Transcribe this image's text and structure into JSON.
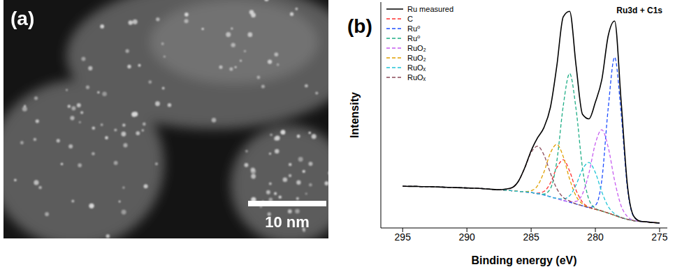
{
  "image": {
    "label": "(a)",
    "scale_bar": "10 nm"
  },
  "chart_data": {
    "type": "line",
    "title": "(b)",
    "annotations": [
      "Ru3d + C1s"
    ],
    "x_label": "Binding energy (eV)",
    "y_label": "Intensity",
    "x": [
      295,
      294.5,
      294,
      293.5,
      293,
      292.5,
      292,
      291.5,
      291,
      290.5,
      290,
      289.5,
      289,
      288.5,
      288,
      287.5,
      287,
      286.5,
      286,
      285.5,
      285,
      284.5,
      284,
      283.5,
      283,
      282.5,
      282,
      281.5,
      281,
      280.5,
      280,
      279.5,
      279,
      278.5,
      278,
      277.5,
      277,
      276.5,
      276,
      275.5,
      275
    ],
    "xlim": [
      296.7,
      274.4
    ],
    "xticks": [
      295,
      290,
      285,
      280,
      275
    ],
    "ylim": [
      0,
      100
    ],
    "tick_labels": "x",
    "legend": "upper left",
    "series": [
      {
        "name": "Ru measured",
        "color": "#000000",
        "line_style": "solid",
        "values": [
          18.5,
          18.4,
          18.4,
          18.3,
          18.3,
          18.2,
          18.1,
          18.0,
          17.9,
          17.8,
          17.7,
          17.6,
          17.5,
          17.3,
          17.1,
          16.9,
          17.2,
          17.8,
          20.6,
          26.6,
          34.2,
          39.9,
          44.5,
          53.4,
          71.8,
          93.5,
          95.9,
          71.8,
          50.3,
          48.3,
          55.7,
          65.6,
          85.1,
          91.6,
          56.5,
          18.6,
          5.1,
          3.0,
          2.7,
          2.4,
          2.2
        ]
      },
      {
        "name": "C",
        "color": "#ff3030",
        "line_style": "dashed",
        "values": [
          18.5,
          18.4,
          18.4,
          18.3,
          18.3,
          18.2,
          18.1,
          18.0,
          17.9,
          17.8,
          17.7,
          17.6,
          17.5,
          17.3,
          17.1,
          16.9,
          16.7,
          16.5,
          16.2,
          16.0,
          15.7,
          15.4,
          16.2,
          19.9,
          26.7,
          30.2,
          25.1,
          16.7,
          11.4,
          9.2,
          8.3,
          7.5,
          6.6,
          5.6,
          4.6,
          3.8,
          3.2,
          2.9,
          2.7,
          2.4,
          2.2
        ]
      },
      {
        "name": "Ru⁰",
        "color": "#1f4fff",
        "line_style": "dashed",
        "values": [
          18.5,
          18.4,
          18.4,
          18.3,
          18.3,
          18.2,
          18.1,
          18.0,
          17.9,
          17.8,
          17.7,
          17.6,
          17.5,
          17.3,
          17.1,
          16.9,
          16.7,
          16.5,
          16.2,
          16.0,
          15.7,
          15.2,
          14.6,
          13.8,
          13.0,
          12.2,
          11.4,
          10.6,
          9.8,
          9.1,
          10.0,
          21.1,
          53.1,
          75.6,
          51.1,
          17.4,
          4.9,
          3.0,
          2.7,
          2.4,
          2.2
        ]
      },
      {
        "name": "Ru⁰",
        "color": "#1fae86",
        "line_style": "dashed",
        "values": [
          18.5,
          18.4,
          18.4,
          18.3,
          18.3,
          18.2,
          18.1,
          18.0,
          17.9,
          17.8,
          17.7,
          17.6,
          17.5,
          17.3,
          17.1,
          16.9,
          16.7,
          16.5,
          16.2,
          16.0,
          15.7,
          15.2,
          15.0,
          17.4,
          29.6,
          54.1,
          68.4,
          52.5,
          26.4,
          12.6,
          8.7,
          7.5,
          6.6,
          5.6,
          4.6,
          3.8,
          3.2,
          2.9,
          2.7,
          2.4,
          2.2
        ]
      },
      {
        "name": "RuO₂",
        "color": "#c65cf0",
        "line_style": "dashed",
        "values": [
          18.5,
          18.4,
          18.4,
          18.3,
          18.3,
          18.2,
          18.1,
          18.0,
          17.9,
          17.8,
          17.7,
          17.6,
          17.5,
          17.3,
          17.1,
          16.9,
          16.7,
          16.5,
          16.2,
          16.0,
          15.7,
          15.2,
          14.6,
          13.8,
          13.0,
          12.2,
          11.6,
          11.8,
          15.1,
          24.3,
          37.4,
          43.5,
          35.7,
          20.9,
          9.9,
          5.0,
          3.4,
          2.9,
          2.7,
          2.4,
          2.2
        ]
      },
      {
        "name": "RuO₂",
        "color": "#e0a000",
        "line_style": "dashed",
        "values": [
          18.5,
          18.4,
          18.4,
          18.3,
          18.3,
          18.2,
          18.1,
          18.0,
          17.9,
          17.8,
          17.7,
          17.6,
          17.5,
          17.3,
          17.1,
          16.9,
          16.7,
          16.5,
          16.2,
          16.1,
          16.5,
          18.7,
          24.8,
          33.2,
          37.0,
          31.6,
          21.6,
          14.1,
          10.6,
          9.1,
          8.3,
          7.5,
          6.6,
          5.6,
          4.6,
          3.8,
          3.2,
          2.9,
          2.7,
          2.4,
          2.2
        ]
      },
      {
        "name": "RuOₓ",
        "color": "#20c4d6",
        "line_style": "dashed",
        "values": [
          18.5,
          18.4,
          18.4,
          18.3,
          18.3,
          18.2,
          18.1,
          18.0,
          17.9,
          17.8,
          17.7,
          17.6,
          17.5,
          17.3,
          17.1,
          16.9,
          16.7,
          16.5,
          16.2,
          16.0,
          15.7,
          15.2,
          14.6,
          13.8,
          13.1,
          12.9,
          14.3,
          19.1,
          26.0,
          29.0,
          24.5,
          16.0,
          9.5,
          6.3,
          4.7,
          3.8,
          3.2,
          2.9,
          2.7,
          2.4,
          2.2
        ]
      },
      {
        "name": "RuOₓ",
        "color": "#8a4a5a",
        "line_style": "dashed",
        "values": [
          18.5,
          18.4,
          18.4,
          18.3,
          18.3,
          18.2,
          18.1,
          18.0,
          17.9,
          17.8,
          17.7,
          17.6,
          17.5,
          17.3,
          17.1,
          16.9,
          17.2,
          17.8,
          20.6,
          26.5,
          33.4,
          36.2,
          32.3,
          24.3,
          17.4,
          13.5,
          11.9,
          10.6,
          9.8,
          9.0,
          8.3,
          7.5,
          6.6,
          5.6,
          4.6,
          3.8,
          3.2,
          2.9,
          2.7,
          2.4,
          2.2
        ]
      }
    ]
  }
}
